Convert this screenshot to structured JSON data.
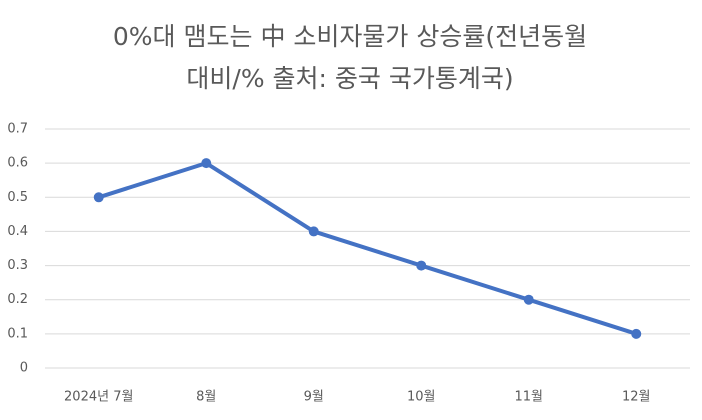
{
  "chart_data": {
    "type": "line",
    "title": [
      "0%대 맴도는 中 소비자물가 상승률(전년동월",
      "대비/% 출처: 중국 국가통계국)"
    ],
    "categories": [
      "2024년 7월",
      "8월",
      "9월",
      "10월",
      "11월",
      "12월"
    ],
    "series": [
      {
        "name": "소비자물가 상승률",
        "color": "#4472c4",
        "values": [
          0.5,
          0.6,
          0.4,
          0.3,
          0.2,
          0.1
        ]
      }
    ],
    "ylim": [
      0,
      0.7
    ],
    "yticks": [
      0,
      0.1,
      0.2,
      0.3,
      0.4,
      0.5,
      0.6,
      0.7
    ],
    "grid": true
  }
}
